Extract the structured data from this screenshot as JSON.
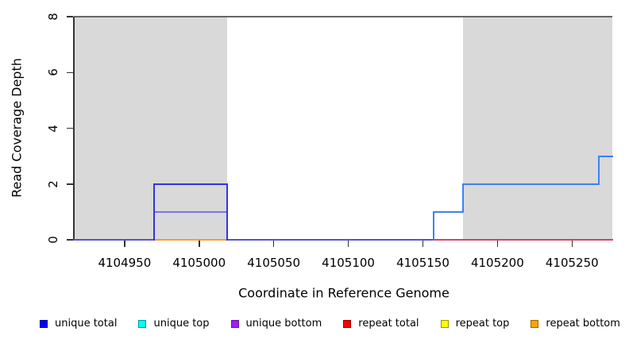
{
  "chart_data": {
    "type": "line",
    "subtype": "step-coverage",
    "title": "",
    "xlabel": "Coordinate in Reference Genome",
    "ylabel": "Read Coverage Depth",
    "xlim": [
      4104916,
      4105277
    ],
    "ylim": [
      0,
      8
    ],
    "x_ticks": [
      4104950,
      4105000,
      4105050,
      4105100,
      4105150,
      4105200,
      4105250
    ],
    "y_ticks": [
      0,
      2,
      4,
      6,
      8
    ],
    "grid": false,
    "shaded_regions": [
      {
        "name": "repeat-region-left",
        "x0": 4104916,
        "x1": 4105019,
        "color": "#d9d9d9"
      },
      {
        "name": "repeat-region-right",
        "x0": 4105177,
        "x1": 4105277,
        "color": "#d9d9d9"
      }
    ],
    "series": [
      {
        "name": "unique total",
        "color": "#0000ff",
        "steps": [
          [
            4104916,
            0
          ],
          [
            4104970,
            2
          ],
          [
            4105019,
            0
          ],
          [
            4105157,
            1
          ],
          [
            4105177,
            2
          ],
          [
            4105268,
            3
          ],
          [
            4105277,
            3
          ]
        ]
      },
      {
        "name": "unique top",
        "color": "#00ffff",
        "steps": [
          [
            4104916,
            0
          ],
          [
            4104970,
            1
          ],
          [
            4105019,
            0
          ],
          [
            4105157,
            1
          ],
          [
            4105177,
            2
          ],
          [
            4105268,
            3
          ],
          [
            4105277,
            3
          ]
        ]
      },
      {
        "name": "unique bottom",
        "color": "#a020f0",
        "steps": [
          [
            4104916,
            0
          ],
          [
            4104970,
            1
          ],
          [
            4105019,
            0
          ],
          [
            4105277,
            0
          ]
        ]
      },
      {
        "name": "repeat total",
        "color": "#ff0000",
        "steps": [
          [
            4104916,
            0
          ],
          [
            4105277,
            0
          ]
        ]
      },
      {
        "name": "repeat top",
        "color": "#ffff00",
        "steps": [
          [
            4104916,
            0
          ],
          [
            4105277,
            0
          ]
        ]
      },
      {
        "name": "repeat bottom",
        "color": "#ffa500",
        "steps": [
          [
            4104916,
            0
          ],
          [
            4105277,
            0
          ]
        ]
      }
    ],
    "drawn_segments": [
      {
        "name": "unique-baseline-left",
        "color": "#5a50d8",
        "width": 2,
        "points": [
          [
            4104916,
            0
          ],
          [
            4104970,
            0
          ]
        ]
      },
      {
        "name": "unique-baseline-mid",
        "color": "#5a50d8",
        "width": 2,
        "points": [
          [
            4105019,
            0
          ],
          [
            4105157,
            0
          ]
        ]
      },
      {
        "name": "repeat-bottom-segment",
        "color": "#ff9d1e",
        "width": 2,
        "points": [
          [
            4104970,
            0
          ],
          [
            4105019,
            0
          ]
        ]
      },
      {
        "name": "repeat-total-baseline",
        "color": "#dc4067",
        "width": 2,
        "points": [
          [
            4105157,
            0
          ],
          [
            4105277,
            0
          ]
        ]
      },
      {
        "name": "unique-half-depth-line",
        "color": "#7b70e8",
        "width": 1.5,
        "points": [
          [
            4104970,
            1
          ],
          [
            4105019,
            1
          ]
        ]
      },
      {
        "name": "unique-total-box",
        "color": "#3232e0",
        "width": 2,
        "points": [
          [
            4104970,
            0
          ],
          [
            4104970,
            2
          ],
          [
            4105019,
            2
          ],
          [
            4105019,
            0
          ]
        ]
      },
      {
        "name": "unique-step-right",
        "color": "#3b82f4",
        "width": 2,
        "points": [
          [
            4105157,
            0
          ],
          [
            4105157,
            1
          ],
          [
            4105177,
            1
          ],
          [
            4105177,
            2
          ],
          [
            4105268,
            2
          ],
          [
            4105268,
            3
          ],
          [
            4105277,
            3
          ]
        ]
      }
    ],
    "legend": [
      {
        "label": "unique total",
        "fill": "#0000ff",
        "border": "#000099"
      },
      {
        "label": "unique top",
        "fill": "#00ffff",
        "border": "#009999"
      },
      {
        "label": "unique bottom",
        "fill": "#a020f0",
        "border": "#6b14a0"
      },
      {
        "label": "repeat total",
        "fill": "#ff0000",
        "border": "#990000"
      },
      {
        "label": "repeat top",
        "fill": "#ffff00",
        "border": "#999900"
      },
      {
        "label": "repeat bottom",
        "fill": "#ffa500",
        "border": "#a06000"
      }
    ],
    "frame": {
      "axis_color": "#333333",
      "top_line_color": "#666666"
    }
  }
}
